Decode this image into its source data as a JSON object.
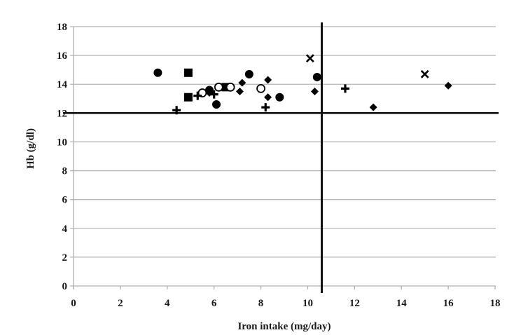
{
  "chart_data": {
    "type": "scatter",
    "title": "",
    "xlabel": "Iron intake (mg/day)",
    "ylabel": "Hb (g/dl)",
    "xlim": [
      0,
      18
    ],
    "ylim": [
      0,
      18
    ],
    "x_ticks": [
      0,
      2,
      4,
      6,
      8,
      10,
      12,
      14,
      16,
      18
    ],
    "y_ticks": [
      0,
      2,
      4,
      6,
      8,
      10,
      12,
      14,
      16,
      18
    ],
    "grid": "horizontal",
    "legend": "none",
    "reference_lines": [
      {
        "orientation": "horizontal",
        "value": 12
      },
      {
        "orientation": "vertical",
        "value": 10.6
      }
    ],
    "series": [
      {
        "name": "filled-circle",
        "marker": "circle-filled",
        "points": [
          [
            3.6,
            14.8
          ],
          [
            5.8,
            13.6
          ],
          [
            6.1,
            12.6
          ],
          [
            7.5,
            14.7
          ],
          [
            8.8,
            13.1
          ],
          [
            10.4,
            14.5
          ]
        ]
      },
      {
        "name": "filled-square",
        "marker": "square",
        "points": [
          [
            4.9,
            14.8
          ],
          [
            4.9,
            13.1
          ],
          [
            6.5,
            13.8
          ]
        ]
      },
      {
        "name": "open-circle",
        "marker": "circle-open",
        "points": [
          [
            5.5,
            13.4
          ],
          [
            6.2,
            13.8
          ],
          [
            6.7,
            13.8
          ],
          [
            8.0,
            13.7
          ]
        ]
      },
      {
        "name": "plus",
        "marker": "plus",
        "points": [
          [
            4.4,
            12.2
          ],
          [
            5.3,
            13.2
          ],
          [
            6.0,
            13.3
          ],
          [
            8.2,
            12.4
          ],
          [
            11.6,
            13.7
          ]
        ]
      },
      {
        "name": "diamond",
        "marker": "diamond",
        "points": [
          [
            5.8,
            13.4
          ],
          [
            7.1,
            13.5
          ],
          [
            7.2,
            14.1
          ],
          [
            8.3,
            14.3
          ],
          [
            8.3,
            13.1
          ],
          [
            10.3,
            13.5
          ],
          [
            12.8,
            12.4
          ],
          [
            16.0,
            13.9
          ]
        ]
      },
      {
        "name": "cross",
        "marker": "x",
        "points": [
          [
            10.1,
            15.8
          ],
          [
            15.0,
            14.7
          ]
        ]
      }
    ]
  },
  "labels": {
    "xlabel": "Iron intake (mg/day)",
    "ylabel": "Hb (g/dl)"
  }
}
